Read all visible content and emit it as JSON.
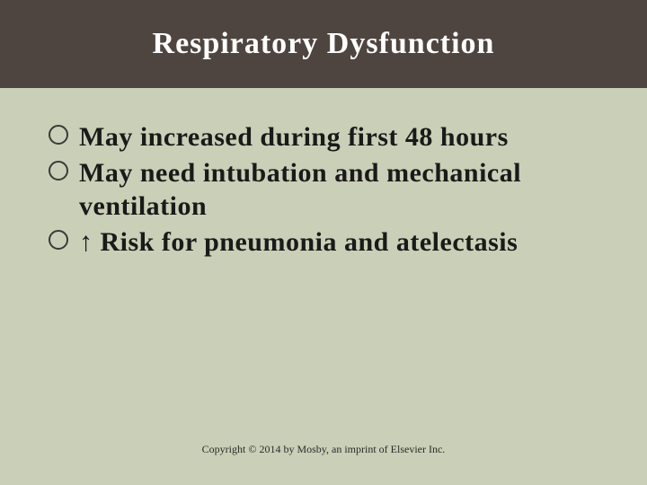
{
  "slide": {
    "title": "Respiratory Dysfunction",
    "title_fontsize": 34,
    "title_color": "#ffffff",
    "titlebar_bg": "#4f4540",
    "body_bg": "#cacfb7",
    "bullets": [
      "May increased during first 48 hours",
      "May need intubation and mechanical ventilation",
      "↑ Risk for pneumonia and atelectasis"
    ],
    "bullet_fontsize": 30,
    "bullet_color": "#1a1a1a",
    "bullet_marker_border": "#3a3a38",
    "bullet_marker_border_width": 2.5,
    "footer": "Copyright © 2014 by Mosby, an imprint of Elsevier Inc.",
    "footer_fontsize": 12,
    "footer_color": "#2a2a28"
  }
}
